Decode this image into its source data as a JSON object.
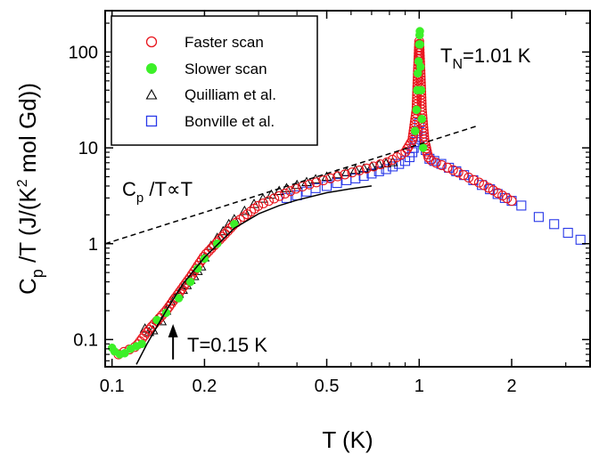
{
  "chart_data": {
    "type": "scatter",
    "title": "",
    "xlabel": "T (K)",
    "ylabel": "C_p /T (J/(K^2 mol Gd))",
    "xscale": "log",
    "yscale": "log",
    "xlim": [
      0.095,
      3.6
    ],
    "ylim": [
      0.052,
      270
    ],
    "grid": false,
    "legend_position": "top-left",
    "x_ticks": [
      {
        "value": 0.1,
        "label": "0.1"
      },
      {
        "value": 0.2,
        "label": "0.2"
      },
      {
        "value": 0.5,
        "label": "0.5"
      },
      {
        "value": 1,
        "label": "1"
      },
      {
        "value": 2,
        "label": "2"
      }
    ],
    "x_minor_ticks": [
      0.3,
      0.4,
      0.6,
      0.7,
      0.8,
      0.9,
      3
    ],
    "y_ticks": [
      {
        "value": 0.1,
        "label": "0.1"
      },
      {
        "value": 1,
        "label": "1"
      },
      {
        "value": 10,
        "label": "10"
      },
      {
        "value": 100,
        "label": "100"
      }
    ],
    "y_minor_ticks": [
      0.06,
      0.07,
      0.08,
      0.09,
      0.2,
      0.3,
      0.4,
      0.5,
      0.6,
      0.7,
      0.8,
      0.9,
      2,
      3,
      4,
      5,
      6,
      7,
      8,
      9,
      20,
      30,
      40,
      50,
      60,
      70,
      80,
      90,
      200
    ],
    "series": [
      {
        "name": "Faster scan",
        "marker": "open-circle",
        "color": "#e8141c",
        "curve": [
          [
            0.105,
            0.07
          ],
          [
            0.12,
            0.085
          ],
          [
            0.13,
            0.12
          ],
          [
            0.15,
            0.2
          ],
          [
            0.18,
            0.45
          ],
          [
            0.2,
            0.75
          ],
          [
            0.25,
            1.6
          ],
          [
            0.3,
            2.5
          ],
          [
            0.4,
            3.8
          ],
          [
            0.5,
            4.7
          ],
          [
            0.6,
            5.5
          ],
          [
            0.7,
            6.3
          ],
          [
            0.8,
            7.2
          ],
          [
            0.9,
            9.0
          ],
          [
            0.95,
            12.0
          ],
          [
            0.98,
            25.0
          ],
          [
            0.99,
            60.0
          ],
          [
            1.0,
            130.0
          ],
          [
            1.01,
            60.0
          ],
          [
            1.02,
            25.0
          ],
          [
            1.04,
            12.0
          ],
          [
            1.07,
            8.0
          ],
          [
            1.1,
            7.3
          ],
          [
            1.3,
            5.8
          ],
          [
            1.6,
            4.2
          ],
          [
            2.0,
            2.8
          ]
        ],
        "n": 170
      },
      {
        "name": "Slower scan",
        "marker": "filled-circle",
        "color": "#3cf028",
        "x": [
          0.1,
          0.102,
          0.106,
          0.11,
          0.115,
          0.12,
          0.125,
          0.14,
          0.15,
          0.165,
          0.18,
          0.19,
          0.2,
          0.22,
          0.25,
          0.97,
          0.98,
          0.985,
          0.99,
          0.995,
          1.0,
          1.003,
          1.005,
          1.007,
          1.01,
          1.015,
          1.02,
          1.03
        ],
        "y": [
          0.082,
          0.075,
          0.07,
          0.072,
          0.08,
          0.085,
          0.09,
          0.16,
          0.19,
          0.27,
          0.4,
          0.55,
          0.7,
          1.0,
          1.6,
          15,
          25,
          40,
          60,
          80,
          120,
          150,
          165,
          120,
          70,
          40,
          20,
          10
        ]
      },
      {
        "name": "Quilliam et al.",
        "marker": "open-triangle",
        "color": "#000000",
        "x": [
          0.128,
          0.132,
          0.136,
          0.14,
          0.145,
          0.15,
          0.155,
          0.16,
          0.165,
          0.17,
          0.175,
          0.18,
          0.185,
          0.19,
          0.195,
          0.2,
          0.21,
          0.22,
          0.23,
          0.24,
          0.25,
          0.27,
          0.29,
          0.31,
          0.33,
          0.35,
          0.37,
          0.4,
          0.43,
          0.46,
          0.5,
          0.54,
          0.58,
          0.62,
          0.66,
          0.7,
          0.74,
          0.78,
          0.82
        ],
        "y": [
          0.13,
          0.12,
          0.125,
          0.16,
          0.155,
          0.2,
          0.25,
          0.27,
          0.3,
          0.33,
          0.37,
          0.42,
          0.46,
          0.52,
          0.58,
          0.72,
          0.95,
          1.15,
          1.35,
          1.6,
          1.8,
          2.2,
          2.6,
          2.95,
          3.25,
          3.55,
          3.8,
          4.1,
          4.4,
          4.7,
          5.0,
          5.3,
          5.6,
          5.9,
          6.1,
          6.4,
          6.7,
          6.9,
          7.1
        ]
      },
      {
        "name": "Bonville et al.",
        "marker": "open-square",
        "color": "#2838e8",
        "x": [
          0.37,
          0.4,
          0.43,
          0.46,
          0.5,
          0.54,
          0.58,
          0.62,
          0.66,
          0.7,
          0.74,
          0.78,
          0.82,
          0.86,
          0.9,
          0.93,
          0.95,
          0.96,
          0.97,
          0.98,
          0.99,
          1.0,
          1.02,
          1.05,
          1.08,
          1.12,
          1.18,
          1.25,
          1.32,
          1.4,
          1.5,
          1.6,
          1.7,
          1.8,
          1.9,
          2.0,
          2.15,
          2.45,
          2.75,
          3.05,
          3.35
        ],
        "y": [
          3.0,
          3.2,
          3.5,
          3.8,
          4.0,
          4.3,
          4.6,
          4.8,
          5.1,
          5.4,
          5.7,
          6.0,
          6.4,
          6.8,
          7.3,
          8.0,
          9.0,
          10.0,
          11.5,
          13.0,
          15.0,
          18.0,
          13.0,
          9.5,
          7.7,
          7.3,
          6.8,
          6.2,
          5.7,
          5.2,
          4.6,
          4.1,
          3.7,
          3.3,
          3.0,
          2.8,
          2.5,
          1.9,
          1.6,
          1.3,
          1.1
        ]
      }
    ],
    "lines": [
      {
        "style": "dashed",
        "x": [
          0.095,
          1.55
        ],
        "y": [
          1.0,
          17.0
        ]
      },
      {
        "style": "solid",
        "x": [
          0.12,
          0.13,
          0.15,
          0.17,
          0.2,
          0.25,
          0.3,
          0.35,
          0.4,
          0.5,
          0.6,
          0.7
        ],
        "y": [
          0.055,
          0.09,
          0.2,
          0.38,
          0.72,
          1.45,
          2.05,
          2.5,
          2.85,
          3.4,
          3.75,
          4.0
        ]
      }
    ],
    "annotations": [
      {
        "id": "tn",
        "text": "T",
        "sub": "N",
        "suffix": "=1.01 K"
      },
      {
        "id": "proportional",
        "text": "C",
        "sub": "p",
        "suffix": " /T∝T"
      },
      {
        "id": "arrow",
        "text": "T=0.15 K",
        "arrow_x": 0.158,
        "arrow_y_from": 0.062,
        "arrow_y_to": 0.145
      }
    ],
    "ylabel_parts": {
      "c": "C",
      "sub": "p",
      "mid": " /T (J/(K",
      "sup": "2",
      "end": " mol Gd))"
    }
  }
}
